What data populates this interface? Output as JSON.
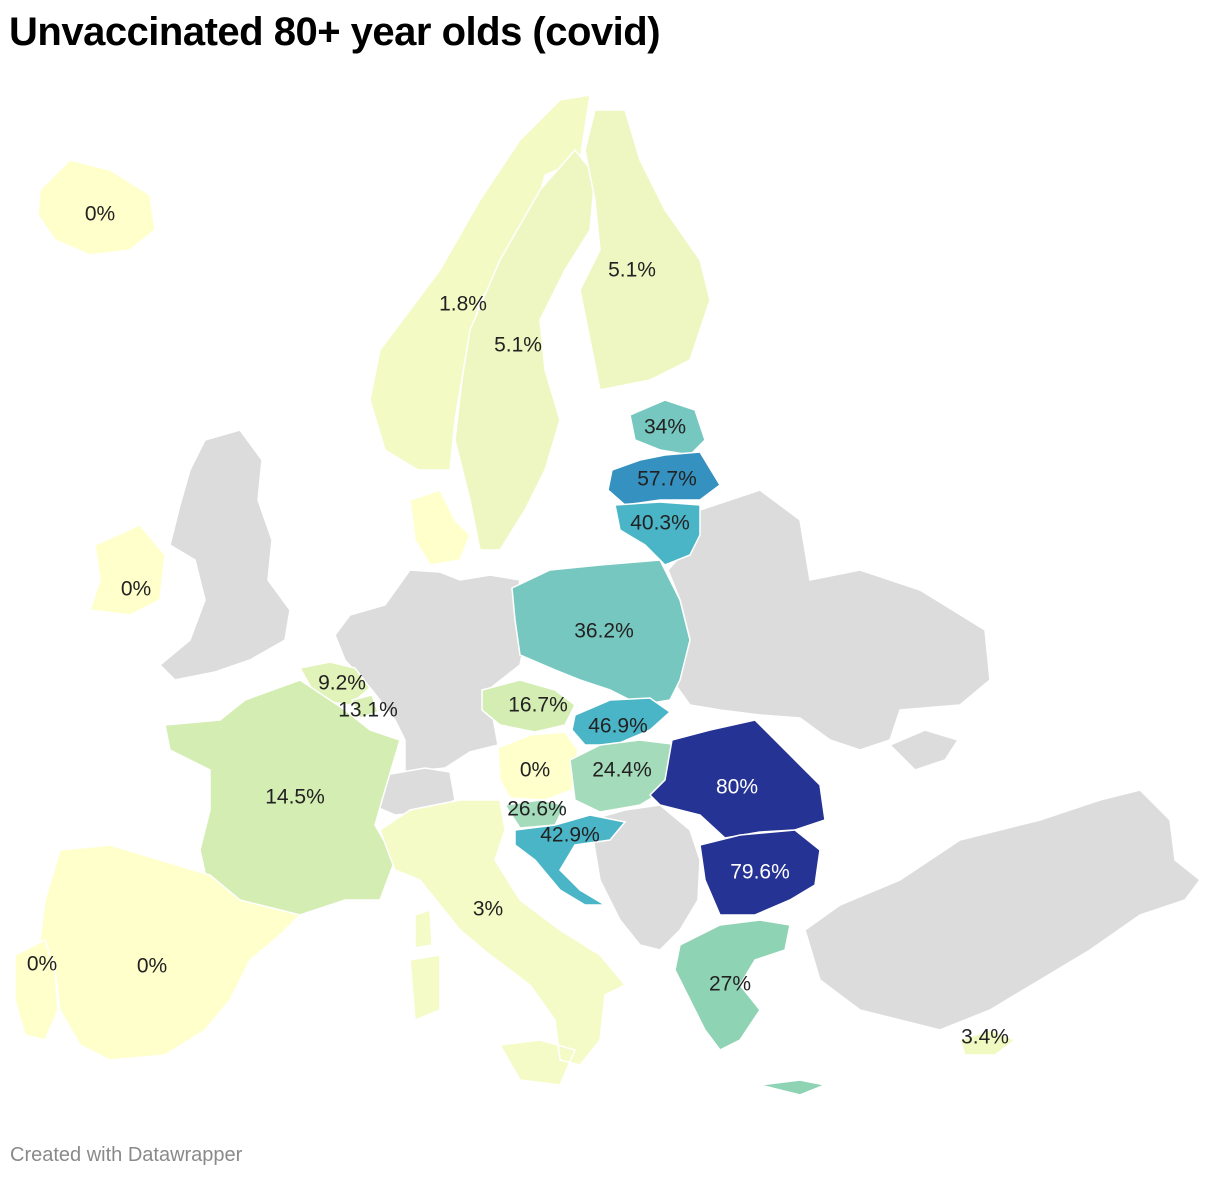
{
  "title": "Unvaccinated 80+ year olds (covid)",
  "credit": "Created with Datawrapper",
  "colors": {
    "no_data": "#dcdcdc",
    "scale": [
      "#ffffcc",
      "#eef7c1",
      "#d4edb3",
      "#a4dbbb",
      "#76c7bf",
      "#4bb5c8",
      "#3591c0",
      "#253494"
    ]
  },
  "chart_data": {
    "type": "choropleth",
    "title": "Unvaccinated 80+ year olds (covid)",
    "unit": "%",
    "regions": [
      {
        "label": "0%",
        "value": 0
      },
      {
        "label": "5.1%",
        "value": 5.1
      },
      {
        "label": "1.8%",
        "value": 1.8
      },
      {
        "label": "5.1%",
        "value": 5.1
      },
      {
        "label": "34%",
        "value": 34
      },
      {
        "label": "57.7%",
        "value": 57.7
      },
      {
        "label": "40.3%",
        "value": 40.3
      },
      {
        "label": "0%",
        "value": 0
      },
      {
        "label": "36.2%",
        "value": 36.2
      },
      {
        "label": "9.2%",
        "value": 9.2
      },
      {
        "label": "13.1%",
        "value": 13.1
      },
      {
        "label": "16.7%",
        "value": 16.7
      },
      {
        "label": "46.9%",
        "value": 46.9
      },
      {
        "label": "0%",
        "value": 0
      },
      {
        "label": "24.4%",
        "value": 24.4
      },
      {
        "label": "80%",
        "value": 80
      },
      {
        "label": "14.5%",
        "value": 14.5
      },
      {
        "label": "26.6%",
        "value": 26.6
      },
      {
        "label": "42.9%",
        "value": 42.9
      },
      {
        "label": "79.6%",
        "value": 79.6
      },
      {
        "label": "3%",
        "value": 3
      },
      {
        "label": "0%",
        "value": 0
      },
      {
        "label": "0%",
        "value": 0
      },
      {
        "label": "27%",
        "value": 27
      },
      {
        "label": "3.4%",
        "value": 3.4
      }
    ]
  }
}
